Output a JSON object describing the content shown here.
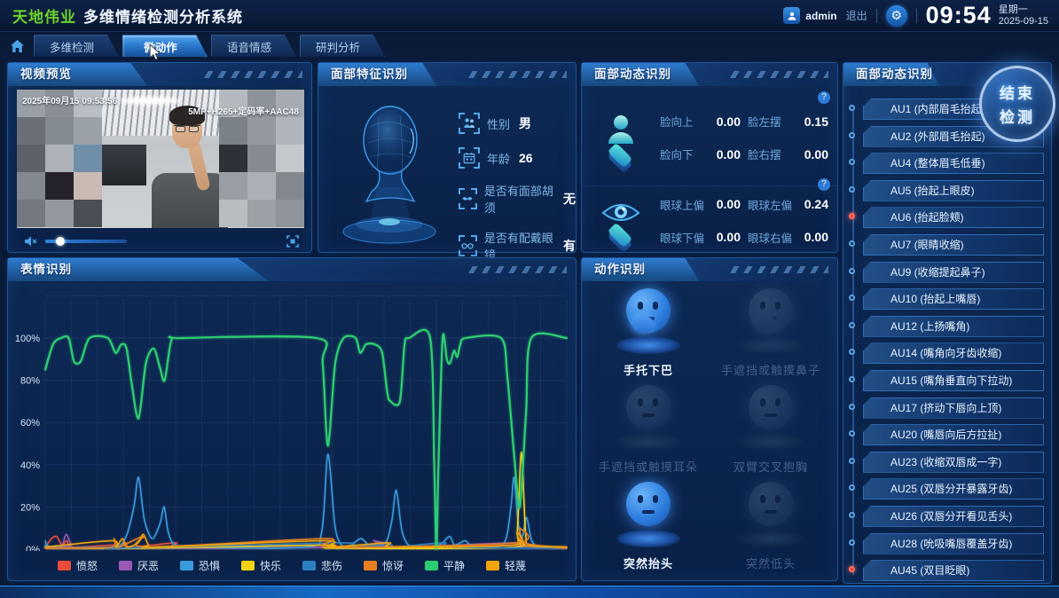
{
  "app": {
    "brand": "天地伟业",
    "title": "多维情绪检测分析系统",
    "username": "admin",
    "logout_label": "退出",
    "gear_glyph": "⚙",
    "time": "09:54",
    "weekday": "星期一",
    "date": "2025-09-15"
  },
  "nav": {
    "tabs": [
      {
        "label": "多维检测",
        "active": false
      },
      {
        "label": "微动作",
        "active": true
      },
      {
        "label": "语音情感",
        "active": false
      },
      {
        "label": "研判分析",
        "active": false
      }
    ]
  },
  "video": {
    "title": "视频预览",
    "timestamp": "2025年09月15 09:53:56",
    "stream_info": "5MP+H265+定码率+AAC48"
  },
  "face_features": {
    "title": "面部特征识别",
    "rows": [
      {
        "label": "性别",
        "value": "男",
        "icon": "gender-icon"
      },
      {
        "label": "年龄",
        "value": "26",
        "icon": "age-icon"
      },
      {
        "label": "是否有面部胡须",
        "value": "无",
        "icon": "beard-icon"
      },
      {
        "label": "是否有配戴眼镜",
        "value": "有",
        "icon": "glasses-icon"
      }
    ]
  },
  "face_dynamics": {
    "title": "面部动态识别",
    "help_glyph": "?",
    "face_metrics": [
      {
        "label": "脸向上",
        "value": "0.00"
      },
      {
        "label": "脸左摆",
        "value": "0.15"
      },
      {
        "label": "脸向下",
        "value": "0.00"
      },
      {
        "label": "脸右摆",
        "value": "0.00"
      }
    ],
    "eye_metrics": [
      {
        "label": "眼球上偏",
        "value": "0.00"
      },
      {
        "label": "眼球左偏",
        "value": "0.24"
      },
      {
        "label": "眼球下偏",
        "value": "0.00"
      },
      {
        "label": "眼球右偏",
        "value": "0.00"
      }
    ]
  },
  "expression": {
    "title": "表情识别"
  },
  "chart_data": {
    "type": "line",
    "title": "表情识别",
    "xlabel": "",
    "ylabel": "",
    "ylim": [
      0,
      100
    ],
    "yticks": [
      "100%",
      "80%",
      "60%",
      "40%",
      "20%",
      "0%"
    ],
    "grid": true,
    "legend_position": "bottom",
    "series": [
      {
        "name": "愤怒",
        "color": "#e84c3d",
        "points": [
          [
            0,
            1
          ],
          [
            1.2,
            5
          ],
          [
            2.2,
            6
          ],
          [
            3.2,
            2
          ],
          [
            4.2,
            4
          ],
          [
            5.2,
            1
          ],
          [
            13,
            2
          ],
          [
            14,
            1
          ],
          [
            15.5,
            3
          ],
          [
            16.5,
            1
          ],
          [
            25,
            3
          ],
          [
            26,
            1
          ],
          [
            54,
            2
          ],
          [
            55,
            1
          ],
          [
            62.5,
            2
          ],
          [
            63.5,
            3
          ],
          [
            64.5,
            1
          ],
          [
            90,
            2
          ],
          [
            91,
            4
          ],
          [
            92,
            1
          ],
          [
            100,
            0.5
          ]
        ]
      },
      {
        "name": "厌恶",
        "color": "#9b59b6",
        "points": [
          [
            0,
            0.5
          ],
          [
            3,
            1
          ],
          [
            4,
            7
          ],
          [
            5,
            2
          ],
          [
            6,
            0.5
          ],
          [
            62,
            1
          ],
          [
            63,
            4
          ],
          [
            64.5,
            2
          ],
          [
            65.5,
            0.5
          ],
          [
            90,
            3
          ],
          [
            91,
            1
          ],
          [
            100,
            0.5
          ]
        ]
      },
      {
        "name": "恐惧",
        "color": "#3a9bdc",
        "points": [
          [
            0,
            4
          ],
          [
            1.5,
            1
          ],
          [
            13,
            1
          ],
          [
            15.5,
            6
          ],
          [
            17,
            20
          ],
          [
            17.9,
            34
          ],
          [
            19,
            14
          ],
          [
            20.5,
            5
          ],
          [
            22,
            12
          ],
          [
            22.8,
            20
          ],
          [
            23.6,
            8
          ],
          [
            25,
            2
          ],
          [
            30,
            1
          ],
          [
            50,
            1
          ],
          [
            53,
            8
          ],
          [
            54.2,
            45
          ],
          [
            55.5,
            12
          ],
          [
            56.5,
            3
          ],
          [
            58,
            1
          ],
          [
            60.5,
            5
          ],
          [
            62,
            2
          ],
          [
            64,
            2
          ],
          [
            65.5,
            4
          ],
          [
            66.5,
            14
          ],
          [
            67.3,
            28
          ],
          [
            68.3,
            10
          ],
          [
            69.3,
            3
          ],
          [
            71,
            1
          ],
          [
            75.5,
            2
          ],
          [
            77.5,
            6
          ],
          [
            78.5,
            2
          ],
          [
            80.5,
            4
          ],
          [
            81.5,
            2
          ],
          [
            84,
            1
          ],
          [
            88,
            3
          ],
          [
            89.3,
            20
          ],
          [
            89.9,
            34
          ],
          [
            90.7,
            12
          ],
          [
            91.5,
            6
          ],
          [
            92.3,
            15
          ],
          [
            93.3,
            4
          ],
          [
            95,
            1
          ],
          [
            100,
            1
          ]
        ]
      },
      {
        "name": "快乐",
        "color": "#f5d313",
        "points": [
          [
            0,
            0.5
          ],
          [
            20,
            0.5
          ],
          [
            54,
            2
          ],
          [
            55,
            0.5
          ],
          [
            89.5,
            1
          ],
          [
            90.5,
            8
          ],
          [
            91.3,
            46
          ],
          [
            92.1,
            8
          ],
          [
            93,
            2
          ],
          [
            100,
            1
          ]
        ]
      },
      {
        "name": "悲伤",
        "color": "#2e7fc1",
        "points": [
          [
            0,
            2
          ],
          [
            1,
            0.5
          ],
          [
            13,
            1
          ],
          [
            14,
            0.5
          ],
          [
            56.5,
            3
          ],
          [
            57.5,
            1
          ],
          [
            66,
            2
          ],
          [
            67,
            1
          ],
          [
            76.5,
            3
          ],
          [
            77.5,
            1
          ],
          [
            100,
            0.5
          ]
        ]
      },
      {
        "name": "惊讶",
        "color": "#e67e22",
        "points": [
          [
            0,
            0.5
          ],
          [
            12.5,
            1
          ],
          [
            13.2,
            5
          ],
          [
            14,
            1
          ],
          [
            18.8,
            6
          ],
          [
            19.6,
            1
          ],
          [
            53.8,
            5
          ],
          [
            54.6,
            1
          ],
          [
            90.2,
            3
          ],
          [
            91,
            10
          ],
          [
            91.8,
            3
          ],
          [
            100,
            0.5
          ]
        ]
      },
      {
        "name": "平静",
        "color": "#2ecc71",
        "points": [
          [
            0,
            85
          ],
          [
            1.5,
            97
          ],
          [
            3,
            100
          ],
          [
            4.5,
            100
          ],
          [
            5.5,
            89
          ],
          [
            6.8,
            89
          ],
          [
            8.5,
            100
          ],
          [
            12,
            100
          ],
          [
            13.5,
            93
          ],
          [
            14.6,
            97
          ],
          [
            15.6,
            95
          ],
          [
            16.6,
            78
          ],
          [
            17.9,
            62
          ],
          [
            19.3,
            88
          ],
          [
            20.8,
            95
          ],
          [
            22,
            86
          ],
          [
            22.9,
            80
          ],
          [
            24.2,
            99
          ],
          [
            26,
            100
          ],
          [
            52,
            100
          ],
          [
            53.2,
            88
          ],
          [
            54.2,
            49
          ],
          [
            55.6,
            88
          ],
          [
            57.2,
            100
          ],
          [
            59.5,
            100
          ],
          [
            60.4,
            93
          ],
          [
            61.5,
            97
          ],
          [
            63.2,
            97
          ],
          [
            64.6,
            93
          ],
          [
            65.6,
            74
          ],
          [
            66.2,
            70
          ],
          [
            68,
            70
          ],
          [
            68.9,
            97
          ],
          [
            69.8,
            100
          ],
          [
            73.8,
            100
          ],
          [
            74.6,
            40
          ],
          [
            75,
            0
          ],
          [
            75.4,
            40
          ],
          [
            76.2,
            100
          ],
          [
            77,
            90
          ],
          [
            77.6,
            88
          ],
          [
            78.4,
            94
          ],
          [
            79,
            91
          ],
          [
            79.6,
            97
          ],
          [
            80.6,
            100
          ],
          [
            87.4,
            100
          ],
          [
            88.6,
            82
          ],
          [
            90,
            42
          ],
          [
            91,
            20
          ],
          [
            92.2,
            65
          ],
          [
            93.2,
            100
          ],
          [
            100,
            100
          ]
        ]
      },
      {
        "name": "轻蔑",
        "color": "#f0a30a",
        "points": [
          [
            0,
            1
          ],
          [
            12.8,
            4
          ],
          [
            13.6,
            1
          ],
          [
            14.8,
            5
          ],
          [
            15.6,
            1
          ],
          [
            17.8,
            3
          ],
          [
            18.8,
            7
          ],
          [
            19.8,
            2
          ],
          [
            21,
            1
          ],
          [
            53.6,
            4
          ],
          [
            54.4,
            1
          ],
          [
            65.8,
            3
          ],
          [
            66.6,
            1
          ],
          [
            89.8,
            2
          ],
          [
            90.6,
            8
          ],
          [
            91.4,
            2
          ],
          [
            100,
            1
          ]
        ]
      }
    ]
  },
  "actions": {
    "title": "动作识别",
    "items": [
      {
        "label": "手托下巴",
        "active": true
      },
      {
        "label": "手遮挡或触摸鼻子",
        "active": false
      },
      {
        "label": "手遮挡或触摸耳朵",
        "active": false
      },
      {
        "label": "双臂交叉抱胸",
        "active": false
      },
      {
        "label": "突然抬头",
        "active": true
      },
      {
        "label": "突然低头",
        "active": false
      }
    ]
  },
  "au_panel": {
    "title": "面部动态识别",
    "end_button_line1": "结束",
    "end_button_line2": "检测",
    "items": [
      {
        "label": "AU1 (内部眉毛抬起)",
        "active": false
      },
      {
        "label": "AU2 (外部眉毛抬起)",
        "active": false
      },
      {
        "label": "AU4 (整体眉毛低垂)",
        "active": false
      },
      {
        "label": "AU5 (抬起上眼皮)",
        "active": false
      },
      {
        "label": "AU6 (抬起脸颊)",
        "active": true
      },
      {
        "label": "AU7 (眼睛收缩)",
        "active": false
      },
      {
        "label": "AU9 (收缩提起鼻子)",
        "active": false
      },
      {
        "label": "AU10 (抬起上嘴唇)",
        "active": false
      },
      {
        "label": "AU12 (上扬嘴角)",
        "active": false
      },
      {
        "label": "AU14 (嘴角向牙齿收缩)",
        "active": false
      },
      {
        "label": "AU15 (嘴角垂直向下拉动)",
        "active": false
      },
      {
        "label": "AU17 (挤动下唇向上顶)",
        "active": false
      },
      {
        "label": "AU20 (嘴唇向后方拉扯)",
        "active": false
      },
      {
        "label": "AU23 (收缩双唇成一字)",
        "active": false
      },
      {
        "label": "AU25 (双唇分开暴露牙齿)",
        "active": false
      },
      {
        "label": "AU26 (双唇分开看见舌头)",
        "active": false
      },
      {
        "label": "AU28 (吮吸嘴唇覆盖牙齿)",
        "active": false
      },
      {
        "label": "AU45 (双目眨眼)",
        "active": true
      }
    ]
  }
}
